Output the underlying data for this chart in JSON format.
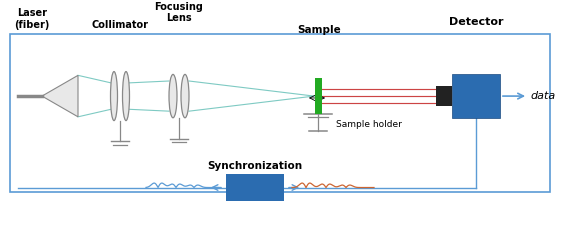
{
  "bg_color": "#ffffff",
  "border_color": "#5b9bd5",
  "laser_label": "Laser\n(fiber)",
  "collimator_label": "Collimator",
  "focusing_label": "Focusing\nLens",
  "sample_label": "Sample",
  "sample_holder_label": "Sample holder",
  "detector_label": "Detector",
  "data_label": "data",
  "sync_label": "Synchronization",
  "beam_color_cyan": "#7ecac3",
  "beam_color_red": "#cc4444",
  "sample_color": "#22aa22",
  "detector_color": "#2b6cb0",
  "detector_lens_color": "#222222",
  "sync_color": "#2b6cb0",
  "arrow_color": "#5b9bd5",
  "lens_edge_color": "#888888",
  "lens_face_color": "#e8e8e8",
  "stand_color": "#888888",
  "wave_color_blue": "#5b9bd5",
  "wave_color_red": "#cc6633",
  "text_color": "#000000",
  "fig_w": 5.65,
  "fig_h": 2.29,
  "dpi": 100
}
